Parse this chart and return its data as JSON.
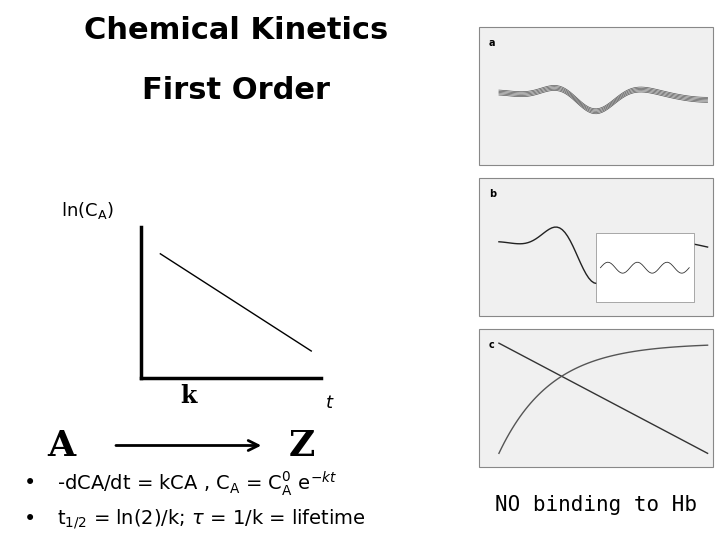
{
  "title_line1": "Chemical Kinetics",
  "title_line2": "First Order",
  "title_fontsize": 22,
  "title_fontweight": "bold",
  "bg_color": "#ffffff",
  "graph_ylabel": "ln(C$_A$)",
  "graph_xlabel": "t",
  "bullet_fontsize": 14,
  "note_text": "NO binding to Hb",
  "note_fontsize": 15,
  "note_fontweight": "normal"
}
